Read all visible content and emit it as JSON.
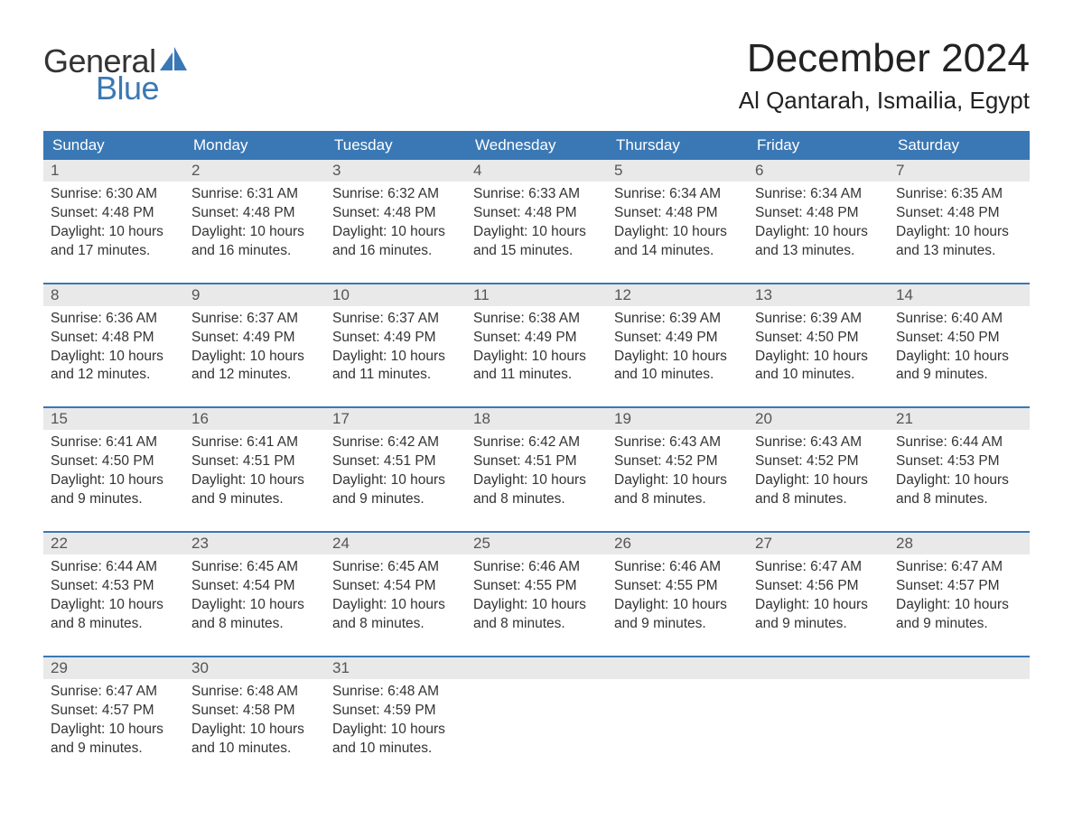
{
  "brand": {
    "word1": "General",
    "word2": "Blue",
    "accent": "#3a78b5",
    "text": "#333333"
  },
  "header": {
    "month": "December 2024",
    "location": "Al Qantarah, Ismailia, Egypt"
  },
  "calendar": {
    "header_bg": "#3a78b5",
    "header_fg": "#ffffff",
    "row_rule": "#3a78b5",
    "daynum_bg": "#e9e9e9",
    "dow": [
      "Sunday",
      "Monday",
      "Tuesday",
      "Wednesday",
      "Thursday",
      "Friday",
      "Saturday"
    ],
    "weeks": [
      [
        {
          "n": "1",
          "sunrise": "Sunrise: 6:30 AM",
          "sunset": "Sunset: 4:48 PM",
          "daylight": "Daylight: 10 hours and 17 minutes."
        },
        {
          "n": "2",
          "sunrise": "Sunrise: 6:31 AM",
          "sunset": "Sunset: 4:48 PM",
          "daylight": "Daylight: 10 hours and 16 minutes."
        },
        {
          "n": "3",
          "sunrise": "Sunrise: 6:32 AM",
          "sunset": "Sunset: 4:48 PM",
          "daylight": "Daylight: 10 hours and 16 minutes."
        },
        {
          "n": "4",
          "sunrise": "Sunrise: 6:33 AM",
          "sunset": "Sunset: 4:48 PM",
          "daylight": "Daylight: 10 hours and 15 minutes."
        },
        {
          "n": "5",
          "sunrise": "Sunrise: 6:34 AM",
          "sunset": "Sunset: 4:48 PM",
          "daylight": "Daylight: 10 hours and 14 minutes."
        },
        {
          "n": "6",
          "sunrise": "Sunrise: 6:34 AM",
          "sunset": "Sunset: 4:48 PM",
          "daylight": "Daylight: 10 hours and 13 minutes."
        },
        {
          "n": "7",
          "sunrise": "Sunrise: 6:35 AM",
          "sunset": "Sunset: 4:48 PM",
          "daylight": "Daylight: 10 hours and 13 minutes."
        }
      ],
      [
        {
          "n": "8",
          "sunrise": "Sunrise: 6:36 AM",
          "sunset": "Sunset: 4:48 PM",
          "daylight": "Daylight: 10 hours and 12 minutes."
        },
        {
          "n": "9",
          "sunrise": "Sunrise: 6:37 AM",
          "sunset": "Sunset: 4:49 PM",
          "daylight": "Daylight: 10 hours and 12 minutes."
        },
        {
          "n": "10",
          "sunrise": "Sunrise: 6:37 AM",
          "sunset": "Sunset: 4:49 PM",
          "daylight": "Daylight: 10 hours and 11 minutes."
        },
        {
          "n": "11",
          "sunrise": "Sunrise: 6:38 AM",
          "sunset": "Sunset: 4:49 PM",
          "daylight": "Daylight: 10 hours and 11 minutes."
        },
        {
          "n": "12",
          "sunrise": "Sunrise: 6:39 AM",
          "sunset": "Sunset: 4:49 PM",
          "daylight": "Daylight: 10 hours and 10 minutes."
        },
        {
          "n": "13",
          "sunrise": "Sunrise: 6:39 AM",
          "sunset": "Sunset: 4:50 PM",
          "daylight": "Daylight: 10 hours and 10 minutes."
        },
        {
          "n": "14",
          "sunrise": "Sunrise: 6:40 AM",
          "sunset": "Sunset: 4:50 PM",
          "daylight": "Daylight: 10 hours and 9 minutes."
        }
      ],
      [
        {
          "n": "15",
          "sunrise": "Sunrise: 6:41 AM",
          "sunset": "Sunset: 4:50 PM",
          "daylight": "Daylight: 10 hours and 9 minutes."
        },
        {
          "n": "16",
          "sunrise": "Sunrise: 6:41 AM",
          "sunset": "Sunset: 4:51 PM",
          "daylight": "Daylight: 10 hours and 9 minutes."
        },
        {
          "n": "17",
          "sunrise": "Sunrise: 6:42 AM",
          "sunset": "Sunset: 4:51 PM",
          "daylight": "Daylight: 10 hours and 9 minutes."
        },
        {
          "n": "18",
          "sunrise": "Sunrise: 6:42 AM",
          "sunset": "Sunset: 4:51 PM",
          "daylight": "Daylight: 10 hours and 8 minutes."
        },
        {
          "n": "19",
          "sunrise": "Sunrise: 6:43 AM",
          "sunset": "Sunset: 4:52 PM",
          "daylight": "Daylight: 10 hours and 8 minutes."
        },
        {
          "n": "20",
          "sunrise": "Sunrise: 6:43 AM",
          "sunset": "Sunset: 4:52 PM",
          "daylight": "Daylight: 10 hours and 8 minutes."
        },
        {
          "n": "21",
          "sunrise": "Sunrise: 6:44 AM",
          "sunset": "Sunset: 4:53 PM",
          "daylight": "Daylight: 10 hours and 8 minutes."
        }
      ],
      [
        {
          "n": "22",
          "sunrise": "Sunrise: 6:44 AM",
          "sunset": "Sunset: 4:53 PM",
          "daylight": "Daylight: 10 hours and 8 minutes."
        },
        {
          "n": "23",
          "sunrise": "Sunrise: 6:45 AM",
          "sunset": "Sunset: 4:54 PM",
          "daylight": "Daylight: 10 hours and 8 minutes."
        },
        {
          "n": "24",
          "sunrise": "Sunrise: 6:45 AM",
          "sunset": "Sunset: 4:54 PM",
          "daylight": "Daylight: 10 hours and 8 minutes."
        },
        {
          "n": "25",
          "sunrise": "Sunrise: 6:46 AM",
          "sunset": "Sunset: 4:55 PM",
          "daylight": "Daylight: 10 hours and 8 minutes."
        },
        {
          "n": "26",
          "sunrise": "Sunrise: 6:46 AM",
          "sunset": "Sunset: 4:55 PM",
          "daylight": "Daylight: 10 hours and 9 minutes."
        },
        {
          "n": "27",
          "sunrise": "Sunrise: 6:47 AM",
          "sunset": "Sunset: 4:56 PM",
          "daylight": "Daylight: 10 hours and 9 minutes."
        },
        {
          "n": "28",
          "sunrise": "Sunrise: 6:47 AM",
          "sunset": "Sunset: 4:57 PM",
          "daylight": "Daylight: 10 hours and 9 minutes."
        }
      ],
      [
        {
          "n": "29",
          "sunrise": "Sunrise: 6:47 AM",
          "sunset": "Sunset: 4:57 PM",
          "daylight": "Daylight: 10 hours and 9 minutes."
        },
        {
          "n": "30",
          "sunrise": "Sunrise: 6:48 AM",
          "sunset": "Sunset: 4:58 PM",
          "daylight": "Daylight: 10 hours and 10 minutes."
        },
        {
          "n": "31",
          "sunrise": "Sunrise: 6:48 AM",
          "sunset": "Sunset: 4:59 PM",
          "daylight": "Daylight: 10 hours and 10 minutes."
        },
        null,
        null,
        null,
        null
      ]
    ]
  }
}
